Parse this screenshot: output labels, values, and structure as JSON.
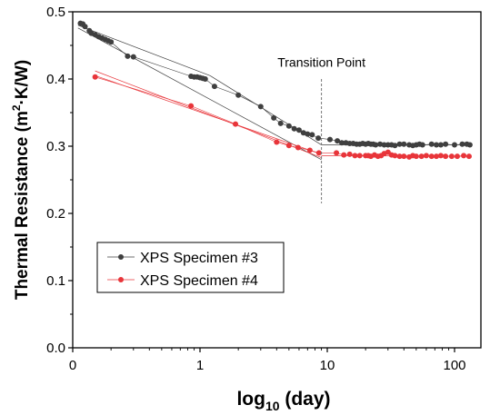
{
  "chart_data": {
    "type": "scatter",
    "xlabel": "log",
    "xlabel_sub": "10",
    "xlabel_rest": " (day)",
    "ylabel": "Thermal Resistance (m",
    "ylabel_sup": "2",
    "ylabel_rest": "·K/W)",
    "x_axis": {
      "scale": "log-like",
      "ticks": [
        {
          "label": "0",
          "value": 0.1
        },
        {
          "label": "1",
          "value": 1
        },
        {
          "label": "10",
          "value": 10
        },
        {
          "label": "100",
          "value": 100
        }
      ],
      "range": [
        0.1,
        150
      ]
    },
    "y_axis": {
      "range": [
        0,
        0.5
      ],
      "ticks": [
        "0.0",
        "0.1",
        "0.2",
        "0.3",
        "0.4",
        "0.5"
      ],
      "tick_values": [
        0,
        0.1,
        0.2,
        0.3,
        0.4,
        0.5
      ]
    },
    "legend": {
      "placement": "lower-left",
      "entries": [
        {
          "label": "XPS Specimen #3",
          "color": "#3f3f3f"
        },
        {
          "label": "XPS Specimen #4",
          "color": "#e8353a"
        }
      ]
    },
    "annotation": {
      "text": "Transition Point",
      "x": 9
    },
    "series": [
      {
        "name": "XPS Specimen #3",
        "color": "#3f3f3f",
        "x": [
          0.115,
          0.12,
          0.125,
          0.135,
          0.14,
          0.15,
          0.16,
          0.17,
          0.18,
          0.19,
          0.2,
          0.27,
          0.3,
          0.85,
          0.9,
          0.95,
          1.0,
          1.05,
          1.1,
          1.3,
          2.0,
          3.0,
          3.8,
          4.3,
          5.0,
          5.5,
          6.0,
          6.5,
          7.0,
          7.6,
          8.5,
          10.5,
          12,
          13,
          14,
          15,
          16,
          17,
          18,
          19,
          20,
          21,
          22,
          23,
          24,
          26,
          28,
          30,
          32,
          34,
          37,
          40,
          44,
          47,
          50,
          53,
          56,
          66,
          72,
          78,
          85,
          100,
          115,
          125,
          132
        ],
        "y": [
          0.483,
          0.482,
          0.478,
          0.472,
          0.468,
          0.466,
          0.463,
          0.461,
          0.459,
          0.457,
          0.455,
          0.434,
          0.433,
          0.404,
          0.403,
          0.403,
          0.402,
          0.401,
          0.4,
          0.389,
          0.376,
          0.359,
          0.342,
          0.334,
          0.33,
          0.326,
          0.324,
          0.32,
          0.318,
          0.317,
          0.312,
          0.31,
          0.308,
          0.305,
          0.305,
          0.304,
          0.304,
          0.303,
          0.303,
          0.304,
          0.303,
          0.304,
          0.303,
          0.303,
          0.302,
          0.303,
          0.302,
          0.302,
          0.302,
          0.301,
          0.303,
          0.303,
          0.302,
          0.301,
          0.302,
          0.303,
          0.302,
          0.303,
          0.302,
          0.302,
          0.303,
          0.302,
          0.303,
          0.303,
          0.302
        ]
      },
      {
        "name": "XPS Specimen #4",
        "color": "#e8353a",
        "x": [
          0.15,
          0.85,
          1.9,
          4.0,
          5.0,
          5.9,
          7.3,
          8.6,
          11.8,
          13.5,
          15,
          16.5,
          18,
          20,
          21,
          22,
          23.5,
          25,
          26.5,
          28,
          30,
          32,
          34,
          37,
          40,
          44,
          47,
          50,
          55,
          60,
          66,
          72,
          78,
          85,
          95,
          105,
          118,
          130
        ],
        "y": [
          0.403,
          0.36,
          0.333,
          0.306,
          0.301,
          0.298,
          0.294,
          0.29,
          0.29,
          0.287,
          0.288,
          0.286,
          0.286,
          0.286,
          0.286,
          0.285,
          0.287,
          0.285,
          0.286,
          0.289,
          0.291,
          0.287,
          0.286,
          0.285,
          0.285,
          0.284,
          0.286,
          0.285,
          0.285,
          0.286,
          0.285,
          0.285,
          0.286,
          0.285,
          0.285,
          0.285,
          0.286,
          0.285
        ]
      }
    ]
  }
}
